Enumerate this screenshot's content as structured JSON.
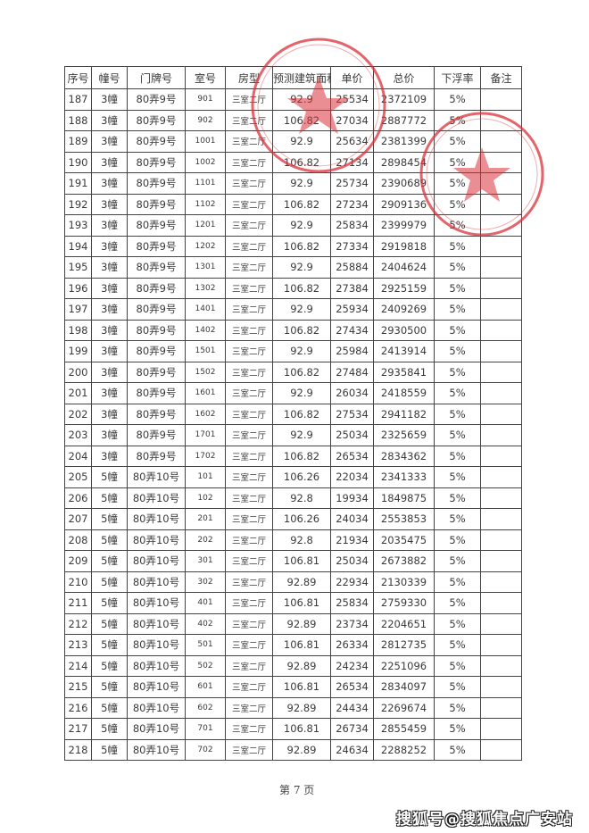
{
  "table": {
    "headers": [
      "序号",
      "幢号",
      "门牌号",
      "室号",
      "房型",
      "预测建筑面积",
      "单价",
      "总价",
      "下浮率",
      "备注"
    ],
    "rows": [
      [
        "187",
        "3幢",
        "80弄9号",
        "901",
        "三室二厅",
        "92.9",
        "25534",
        "2372109",
        "5%",
        ""
      ],
      [
        "188",
        "3幢",
        "80弄9号",
        "902",
        "三室二厅",
        "106.82",
        "27034",
        "2887772",
        "5%",
        ""
      ],
      [
        "189",
        "3幢",
        "80弄9号",
        "1001",
        "三室二厅",
        "92.9",
        "25634",
        "2381399",
        "5%",
        ""
      ],
      [
        "190",
        "3幢",
        "80弄9号",
        "1002",
        "三室二厅",
        "106.82",
        "27134",
        "2898454",
        "5%",
        ""
      ],
      [
        "191",
        "3幢",
        "80弄9号",
        "1101",
        "三室二厅",
        "92.9",
        "25734",
        "2390689",
        "5%",
        ""
      ],
      [
        "192",
        "3幢",
        "80弄9号",
        "1102",
        "三室二厅",
        "106.82",
        "27234",
        "2909136",
        "5%",
        ""
      ],
      [
        "193",
        "3幢",
        "80弄9号",
        "1201",
        "三室二厅",
        "92.9",
        "25834",
        "2399979",
        "5%",
        ""
      ],
      [
        "194",
        "3幢",
        "80弄9号",
        "1202",
        "三室二厅",
        "106.82",
        "27334",
        "2919818",
        "5%",
        ""
      ],
      [
        "195",
        "3幢",
        "80弄9号",
        "1301",
        "三室二厅",
        "92.9",
        "25884",
        "2404624",
        "5%",
        ""
      ],
      [
        "196",
        "3幢",
        "80弄9号",
        "1302",
        "三室二厅",
        "106.82",
        "27384",
        "2925159",
        "5%",
        ""
      ],
      [
        "197",
        "3幢",
        "80弄9号",
        "1401",
        "三室二厅",
        "92.9",
        "25934",
        "2409269",
        "5%",
        ""
      ],
      [
        "198",
        "3幢",
        "80弄9号",
        "1402",
        "三室二厅",
        "106.82",
        "27434",
        "2930500",
        "5%",
        ""
      ],
      [
        "199",
        "3幢",
        "80弄9号",
        "1501",
        "三室二厅",
        "92.9",
        "25984",
        "2413914",
        "5%",
        ""
      ],
      [
        "200",
        "3幢",
        "80弄9号",
        "1502",
        "三室二厅",
        "106.82",
        "27484",
        "2935841",
        "5%",
        ""
      ],
      [
        "201",
        "3幢",
        "80弄9号",
        "1601",
        "三室二厅",
        "92.9",
        "26034",
        "2418559",
        "5%",
        ""
      ],
      [
        "202",
        "3幢",
        "80弄9号",
        "1602",
        "三室二厅",
        "106.82",
        "27534",
        "2941182",
        "5%",
        ""
      ],
      [
        "203",
        "3幢",
        "80弄9号",
        "1701",
        "三室二厅",
        "92.9",
        "25034",
        "2325659",
        "5%",
        ""
      ],
      [
        "204",
        "3幢",
        "80弄9号",
        "1702",
        "三室二厅",
        "106.82",
        "26534",
        "2834362",
        "5%",
        ""
      ],
      [
        "205",
        "5幢",
        "80弄10号",
        "101",
        "三室二厅",
        "106.26",
        "22034",
        "2341333",
        "5%",
        ""
      ],
      [
        "206",
        "5幢",
        "80弄10号",
        "102",
        "三室二厅",
        "92.8",
        "19934",
        "1849875",
        "5%",
        ""
      ],
      [
        "207",
        "5幢",
        "80弄10号",
        "201",
        "三室二厅",
        "106.26",
        "24034",
        "2553853",
        "5%",
        ""
      ],
      [
        "208",
        "5幢",
        "80弄10号",
        "202",
        "三室二厅",
        "92.8",
        "21934",
        "2035475",
        "5%",
        ""
      ],
      [
        "209",
        "5幢",
        "80弄10号",
        "301",
        "三室二厅",
        "106.81",
        "25034",
        "2673882",
        "5%",
        ""
      ],
      [
        "210",
        "5幢",
        "80弄10号",
        "302",
        "三室二厅",
        "92.89",
        "22934",
        "2130339",
        "5%",
        ""
      ],
      [
        "211",
        "5幢",
        "80弄10号",
        "401",
        "三室二厅",
        "106.81",
        "25834",
        "2759330",
        "5%",
        ""
      ],
      [
        "212",
        "5幢",
        "80弄10号",
        "402",
        "三室二厅",
        "92.89",
        "23734",
        "2204651",
        "5%",
        ""
      ],
      [
        "213",
        "5幢",
        "80弄10号",
        "501",
        "三室二厅",
        "106.81",
        "26334",
        "2812735",
        "5%",
        ""
      ],
      [
        "214",
        "5幢",
        "80弄10号",
        "502",
        "三室二厅",
        "92.89",
        "24234",
        "2251096",
        "5%",
        ""
      ],
      [
        "215",
        "5幢",
        "80弄10号",
        "601",
        "三室二厅",
        "106.81",
        "26534",
        "2834097",
        "5%",
        ""
      ],
      [
        "216",
        "5幢",
        "80弄10号",
        "602",
        "三室二厅",
        "92.89",
        "24434",
        "2269674",
        "5%",
        ""
      ],
      [
        "217",
        "5幢",
        "80弄10号",
        "701",
        "三室二厅",
        "106.81",
        "26734",
        "2855459",
        "5%",
        ""
      ],
      [
        "218",
        "5幢",
        "80弄10号",
        "702",
        "三室二厅",
        "92.89",
        "24634",
        "2288252",
        "5%",
        ""
      ]
    ]
  },
  "footer": {
    "page_label": "第 7 页"
  },
  "watermark": "搜狐号@搜狐焦点广安站",
  "colors": {
    "stamp_red": "#d9323a",
    "grid": "#444444"
  }
}
